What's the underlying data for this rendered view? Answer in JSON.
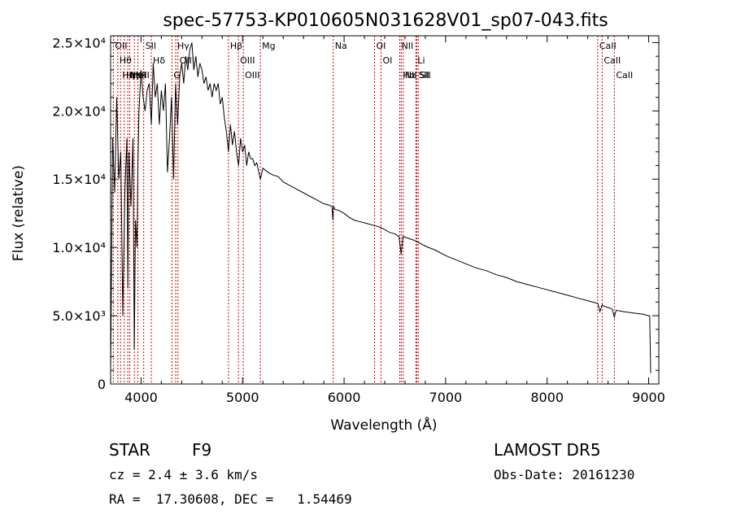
{
  "chart_data": {
    "type": "line",
    "title": "spec-57753-KP010605N031628V01_sp07-043.fits",
    "xlabel": "Wavelength (Å)",
    "ylabel": "Flux (relative)",
    "xlim": [
      3700,
      9100
    ],
    "ylim": [
      0,
      25500
    ],
    "x_ticks": [
      4000,
      5000,
      6000,
      7000,
      8000,
      9000
    ],
    "y_ticks": [
      {
        "value": 0,
        "label": "0"
      },
      {
        "value": 5000,
        "label": "5.0×10³"
      },
      {
        "value": 10000,
        "label": "1.0×10⁴"
      },
      {
        "value": 15000,
        "label": "1.5×10⁴"
      },
      {
        "value": 20000,
        "label": "2.0×10⁴"
      },
      {
        "value": 25000,
        "label": "2.5×10⁴"
      }
    ],
    "grid": false,
    "line_color": "#000000",
    "marker_color": "#cc0000",
    "spectrum": {
      "x": [
        3700,
        3720,
        3740,
        3760,
        3780,
        3800,
        3820,
        3840,
        3860,
        3870,
        3880,
        3900,
        3920,
        3933,
        3945,
        3960,
        3968,
        3980,
        4000,
        4020,
        4040,
        4060,
        4080,
        4101,
        4120,
        4140,
        4160,
        4180,
        4200,
        4220,
        4240,
        4260,
        4280,
        4300,
        4320,
        4340,
        4360,
        4380,
        4400,
        4420,
        4440,
        4460,
        4480,
        4500,
        4520,
        4540,
        4560,
        4580,
        4600,
        4620,
        4640,
        4660,
        4680,
        4700,
        4720,
        4740,
        4760,
        4780,
        4800,
        4820,
        4840,
        4861,
        4880,
        4900,
        4920,
        4940,
        4960,
        4980,
        5000,
        5020,
        5040,
        5060,
        5080,
        5100,
        5120,
        5140,
        5160,
        5175,
        5200,
        5250,
        5300,
        5350,
        5400,
        5450,
        5500,
        5550,
        5600,
        5650,
        5700,
        5750,
        5800,
        5850,
        5880,
        5890,
        5896,
        5910,
        5950,
        6000,
        6050,
        6100,
        6150,
        6200,
        6250,
        6300,
        6350,
        6400,
        6450,
        6500,
        6540,
        6563,
        6580,
        6620,
        6700,
        6800,
        6900,
        7000,
        7100,
        7200,
        7300,
        7400,
        7500,
        7600,
        7700,
        7800,
        7900,
        8000,
        8100,
        8200,
        8300,
        8400,
        8500,
        8520,
        8542,
        8560,
        8600,
        8640,
        8662,
        8680,
        8750,
        8850,
        8950,
        9000,
        9010,
        9020
      ],
      "y": [
        800,
        18000,
        14000,
        21000,
        15000,
        17000,
        5000,
        14000,
        18000,
        7000,
        17000,
        13000,
        18000,
        2500,
        12000,
        10000,
        16000,
        20000,
        23000,
        21000,
        20000,
        21500,
        22000,
        19000,
        23500,
        21000,
        22000,
        19000,
        21500,
        20000,
        22000,
        15500,
        18000,
        21000,
        15000,
        22000,
        19000,
        22500,
        23500,
        22000,
        24000,
        23000,
        24500,
        25000,
        23000,
        24000,
        22500,
        23500,
        23000,
        22000,
        22500,
        21500,
        22000,
        21000,
        22000,
        21500,
        22000,
        20500,
        21000,
        19500,
        18500,
        17000,
        19000,
        17500,
        18500,
        17000,
        16000,
        18000,
        17000,
        17500,
        16000,
        17000,
        16500,
        16500,
        16000,
        16200,
        15500,
        15000,
        15800,
        15500,
        15300,
        15200,
        14800,
        14600,
        14400,
        14200,
        14000,
        13800,
        13600,
        13400,
        13200,
        13100,
        13000,
        12000,
        13000,
        12800,
        12700,
        12500,
        12200,
        12000,
        11900,
        11800,
        11700,
        11600,
        11500,
        11300,
        11100,
        11000,
        10800,
        9500,
        10800,
        10700,
        10500,
        10100,
        9800,
        9400,
        9100,
        8800,
        8500,
        8300,
        8000,
        7800,
        7500,
        7300,
        7100,
        6900,
        6700,
        6500,
        6300,
        6100,
        5900,
        5300,
        5800,
        5700,
        5600,
        5500,
        4900,
        5400,
        5300,
        5200,
        5100,
        5000,
        5000,
        800
      ]
    },
    "lines": [
      {
        "wl": 3727,
        "labels": [
          "OII"
        ]
      },
      {
        "wl": 3771,
        "labels": [
          "Hθ"
        ]
      },
      {
        "wl": 3798,
        "labels": [
          "Hη"
        ]
      },
      {
        "wl": 3835,
        "labels": [
          "Hη"
        ]
      },
      {
        "wl": 3869,
        "labels": [
          "NeIII"
        ]
      },
      {
        "wl": 3889,
        "labels": [
          "HeI"
        ]
      },
      {
        "wl": 3934,
        "labels": [
          "K"
        ]
      },
      {
        "wl": 3969,
        "labels": [
          "H"
        ]
      },
      {
        "wl": 4026,
        "labels": [
          "SII"
        ]
      },
      {
        "wl": 4101,
        "labels": [
          "Hδ"
        ]
      },
      {
        "wl": 4304,
        "labels": [
          "G"
        ]
      },
      {
        "wl": 4341,
        "labels": [
          "Hγ"
        ]
      },
      {
        "wl": 4363,
        "labels": [
          "OIII"
        ]
      },
      {
        "wl": 4861,
        "labels": [
          "Hβ"
        ]
      },
      {
        "wl": 4959,
        "labels": [
          "OIII"
        ]
      },
      {
        "wl": 5007,
        "labels": [
          "OIII"
        ]
      },
      {
        "wl": 5175,
        "labels": [
          "Mg"
        ]
      },
      {
        "wl": 5893,
        "labels": [
          "Na"
        ]
      },
      {
        "wl": 6300,
        "labels": [
          "OI"
        ]
      },
      {
        "wl": 6364,
        "labels": [
          "OI"
        ]
      },
      {
        "wl": 6548,
        "labels": [
          "NII"
        ]
      },
      {
        "wl": 6563,
        "labels": [
          "Hα"
        ]
      },
      {
        "wl": 6583,
        "labels": [
          "NII"
        ]
      },
      {
        "wl": 6707,
        "labels": [
          "Li"
        ]
      },
      {
        "wl": 6716,
        "labels": [
          "SII"
        ]
      },
      {
        "wl": 6731,
        "labels": [
          "SII"
        ]
      },
      {
        "wl": 8498,
        "labels": [
          "CaII"
        ]
      },
      {
        "wl": 8542,
        "labels": [
          "CaII"
        ]
      },
      {
        "wl": 8662,
        "labels": [
          "CaII"
        ]
      }
    ]
  },
  "info": {
    "object_class": "STAR",
    "subclass": "F9",
    "survey": "LAMOST DR5",
    "redshift": "cz = 2.4 ± 3.6 km/s",
    "obs_date": "Obs-Date: 20161230",
    "coords": "RA =  17.30608, DEC =   1.54469"
  }
}
